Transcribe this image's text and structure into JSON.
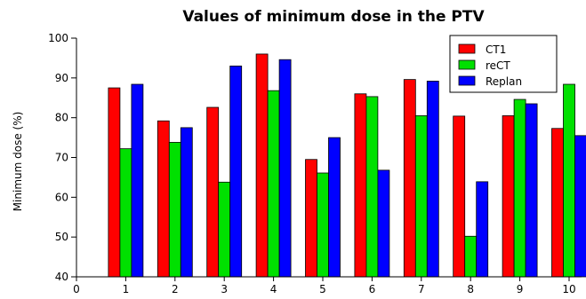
{
  "chart_data": {
    "type": "bar",
    "title": "Values of minimum dose in the PTV",
    "xlabel": "",
    "ylabel": "Minimum dose (%)",
    "categories": [
      "1",
      "2",
      "3",
      "4",
      "5",
      "6",
      "7",
      "8",
      "9",
      "10"
    ],
    "x_ticks": [
      "0",
      "1",
      "2",
      "3",
      "4",
      "5",
      "6",
      "7",
      "8",
      "9",
      "10"
    ],
    "xlim": [
      0,
      10
    ],
    "ylim": [
      40,
      100
    ],
    "y_ticks": [
      "40",
      "50",
      "60",
      "70",
      "80",
      "90",
      "100"
    ],
    "grid": false,
    "legend_position": "top-right",
    "series": [
      {
        "name": "CT1",
        "color": "#ff0000",
        "values": [
          87.5,
          79.2,
          82.6,
          96.0,
          69.5,
          86.0,
          89.6,
          80.4,
          80.5,
          77.3
        ]
      },
      {
        "name": "reCT",
        "color": "#00e000",
        "values": [
          72.2,
          73.8,
          63.8,
          86.8,
          66.1,
          85.3,
          80.5,
          50.2,
          84.6,
          88.4
        ]
      },
      {
        "name": "Replan",
        "color": "#0000ff",
        "values": [
          88.4,
          77.5,
          93.0,
          94.6,
          75.0,
          66.8,
          89.2,
          63.9,
          83.5,
          75.5
        ]
      }
    ]
  }
}
